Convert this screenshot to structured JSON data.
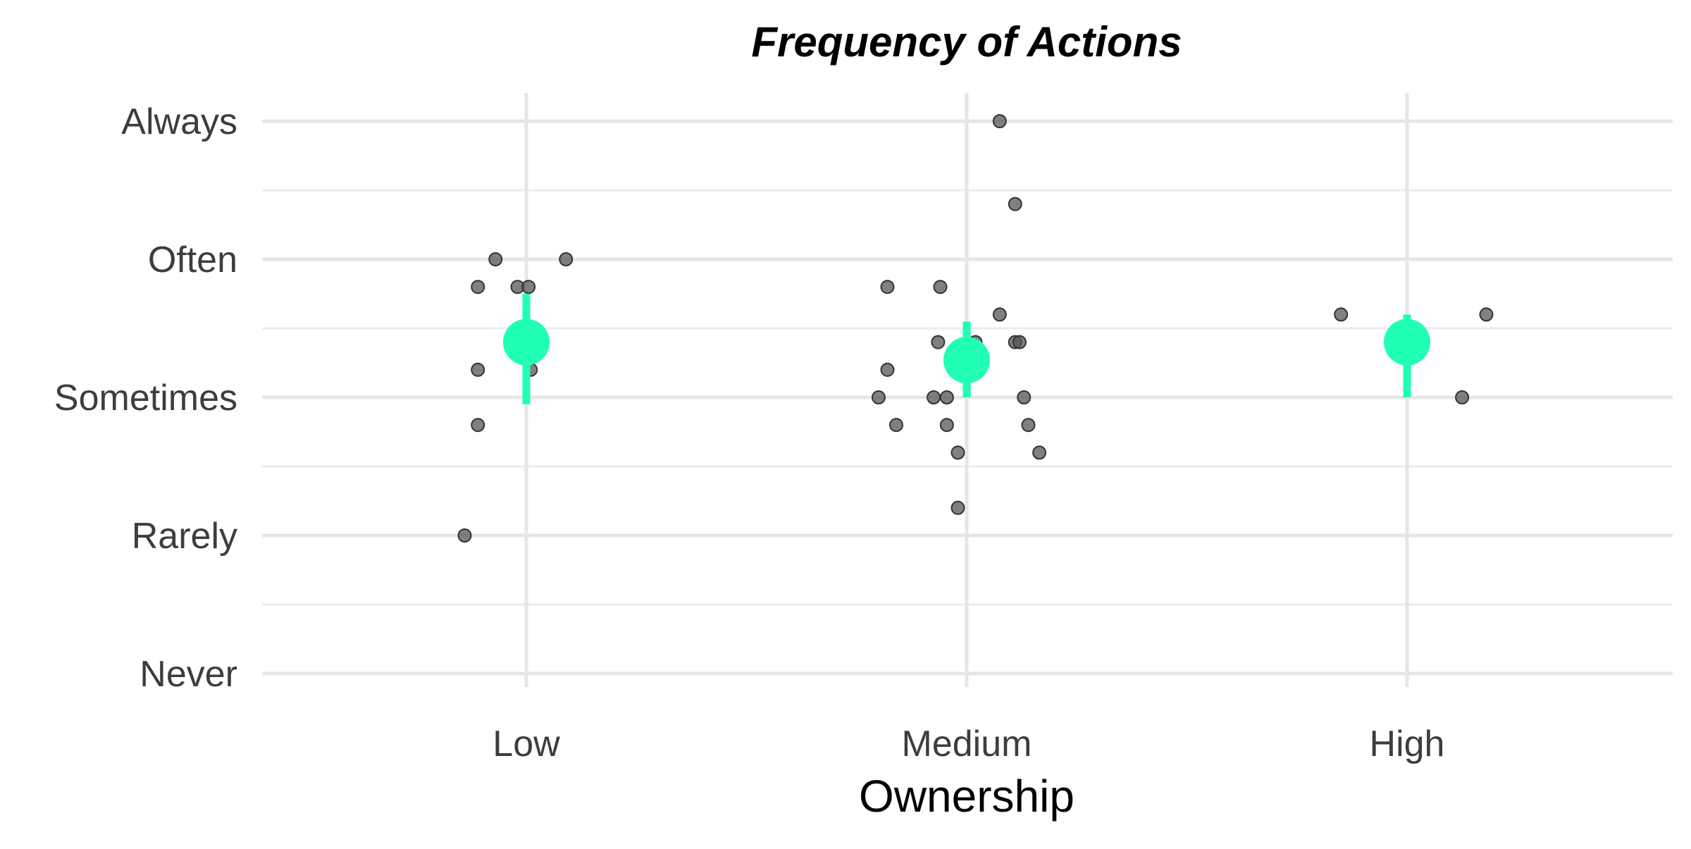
{
  "chart_data": {
    "type": "scatter",
    "title": "Frequency of Actions",
    "xlabel": "Ownership",
    "ylabel": "",
    "x_categories": [
      "Low",
      "Medium",
      "High"
    ],
    "y_categories": [
      "Never",
      "Rarely",
      "Sometimes",
      "Often",
      "Always"
    ],
    "ylim": [
      1,
      5
    ],
    "grid": true,
    "colors": {
      "points": "#555555",
      "summary": "#21ffb4",
      "grid_major": "#e6e6e6",
      "grid_minor": "#ececec"
    },
    "points": [
      {
        "group": "Low",
        "x_offset": -0.07,
        "y": 4.0
      },
      {
        "group": "Low",
        "x_offset": 0.09,
        "y": 4.0
      },
      {
        "group": "Low",
        "x_offset": -0.11,
        "y": 3.8
      },
      {
        "group": "Low",
        "x_offset": -0.02,
        "y": 3.8
      },
      {
        "group": "Low",
        "x_offset": 0.005,
        "y": 3.8
      },
      {
        "group": "Low",
        "x_offset": 0.01,
        "y": 3.2
      },
      {
        "group": "Low",
        "x_offset": -0.11,
        "y": 3.2
      },
      {
        "group": "Low",
        "x_offset": -0.11,
        "y": 2.8
      },
      {
        "group": "Low",
        "x_offset": -0.14,
        "y": 2.0
      },
      {
        "group": "Medium",
        "x_offset": 0.075,
        "y": 5.0
      },
      {
        "group": "Medium",
        "x_offset": 0.11,
        "y": 4.4
      },
      {
        "group": "Medium",
        "x_offset": -0.18,
        "y": 3.8
      },
      {
        "group": "Medium",
        "x_offset": -0.06,
        "y": 3.8
      },
      {
        "group": "Medium",
        "x_offset": 0.075,
        "y": 3.6
      },
      {
        "group": "Medium",
        "x_offset": -0.065,
        "y": 3.4
      },
      {
        "group": "Medium",
        "x_offset": 0.02,
        "y": 3.4
      },
      {
        "group": "Medium",
        "x_offset": 0.11,
        "y": 3.4
      },
      {
        "group": "Medium",
        "x_offset": 0.12,
        "y": 3.4
      },
      {
        "group": "Medium",
        "x_offset": -0.18,
        "y": 3.2
      },
      {
        "group": "Medium",
        "x_offset": -0.2,
        "y": 3.0
      },
      {
        "group": "Medium",
        "x_offset": -0.075,
        "y": 3.0
      },
      {
        "group": "Medium",
        "x_offset": -0.045,
        "y": 3.0
      },
      {
        "group": "Medium",
        "x_offset": 0.13,
        "y": 3.0
      },
      {
        "group": "Medium",
        "x_offset": -0.16,
        "y": 2.8
      },
      {
        "group": "Medium",
        "x_offset": -0.045,
        "y": 2.8
      },
      {
        "group": "Medium",
        "x_offset": 0.14,
        "y": 2.8
      },
      {
        "group": "Medium",
        "x_offset": -0.02,
        "y": 2.6
      },
      {
        "group": "Medium",
        "x_offset": 0.165,
        "y": 2.6
      },
      {
        "group": "Medium",
        "x_offset": -0.02,
        "y": 2.2
      },
      {
        "group": "High",
        "x_offset": -0.15,
        "y": 3.6
      },
      {
        "group": "High",
        "x_offset": 0.18,
        "y": 3.6
      },
      {
        "group": "High",
        "x_offset": 0.125,
        "y": 3.0
      }
    ],
    "summary": [
      {
        "group": "Low",
        "mean": 3.4,
        "low": 2.95,
        "high": 3.75
      },
      {
        "group": "Medium",
        "mean": 3.27,
        "low": 3.0,
        "high": 3.55
      },
      {
        "group": "High",
        "mean": 3.4,
        "low": 3.0,
        "high": 3.6
      }
    ]
  }
}
